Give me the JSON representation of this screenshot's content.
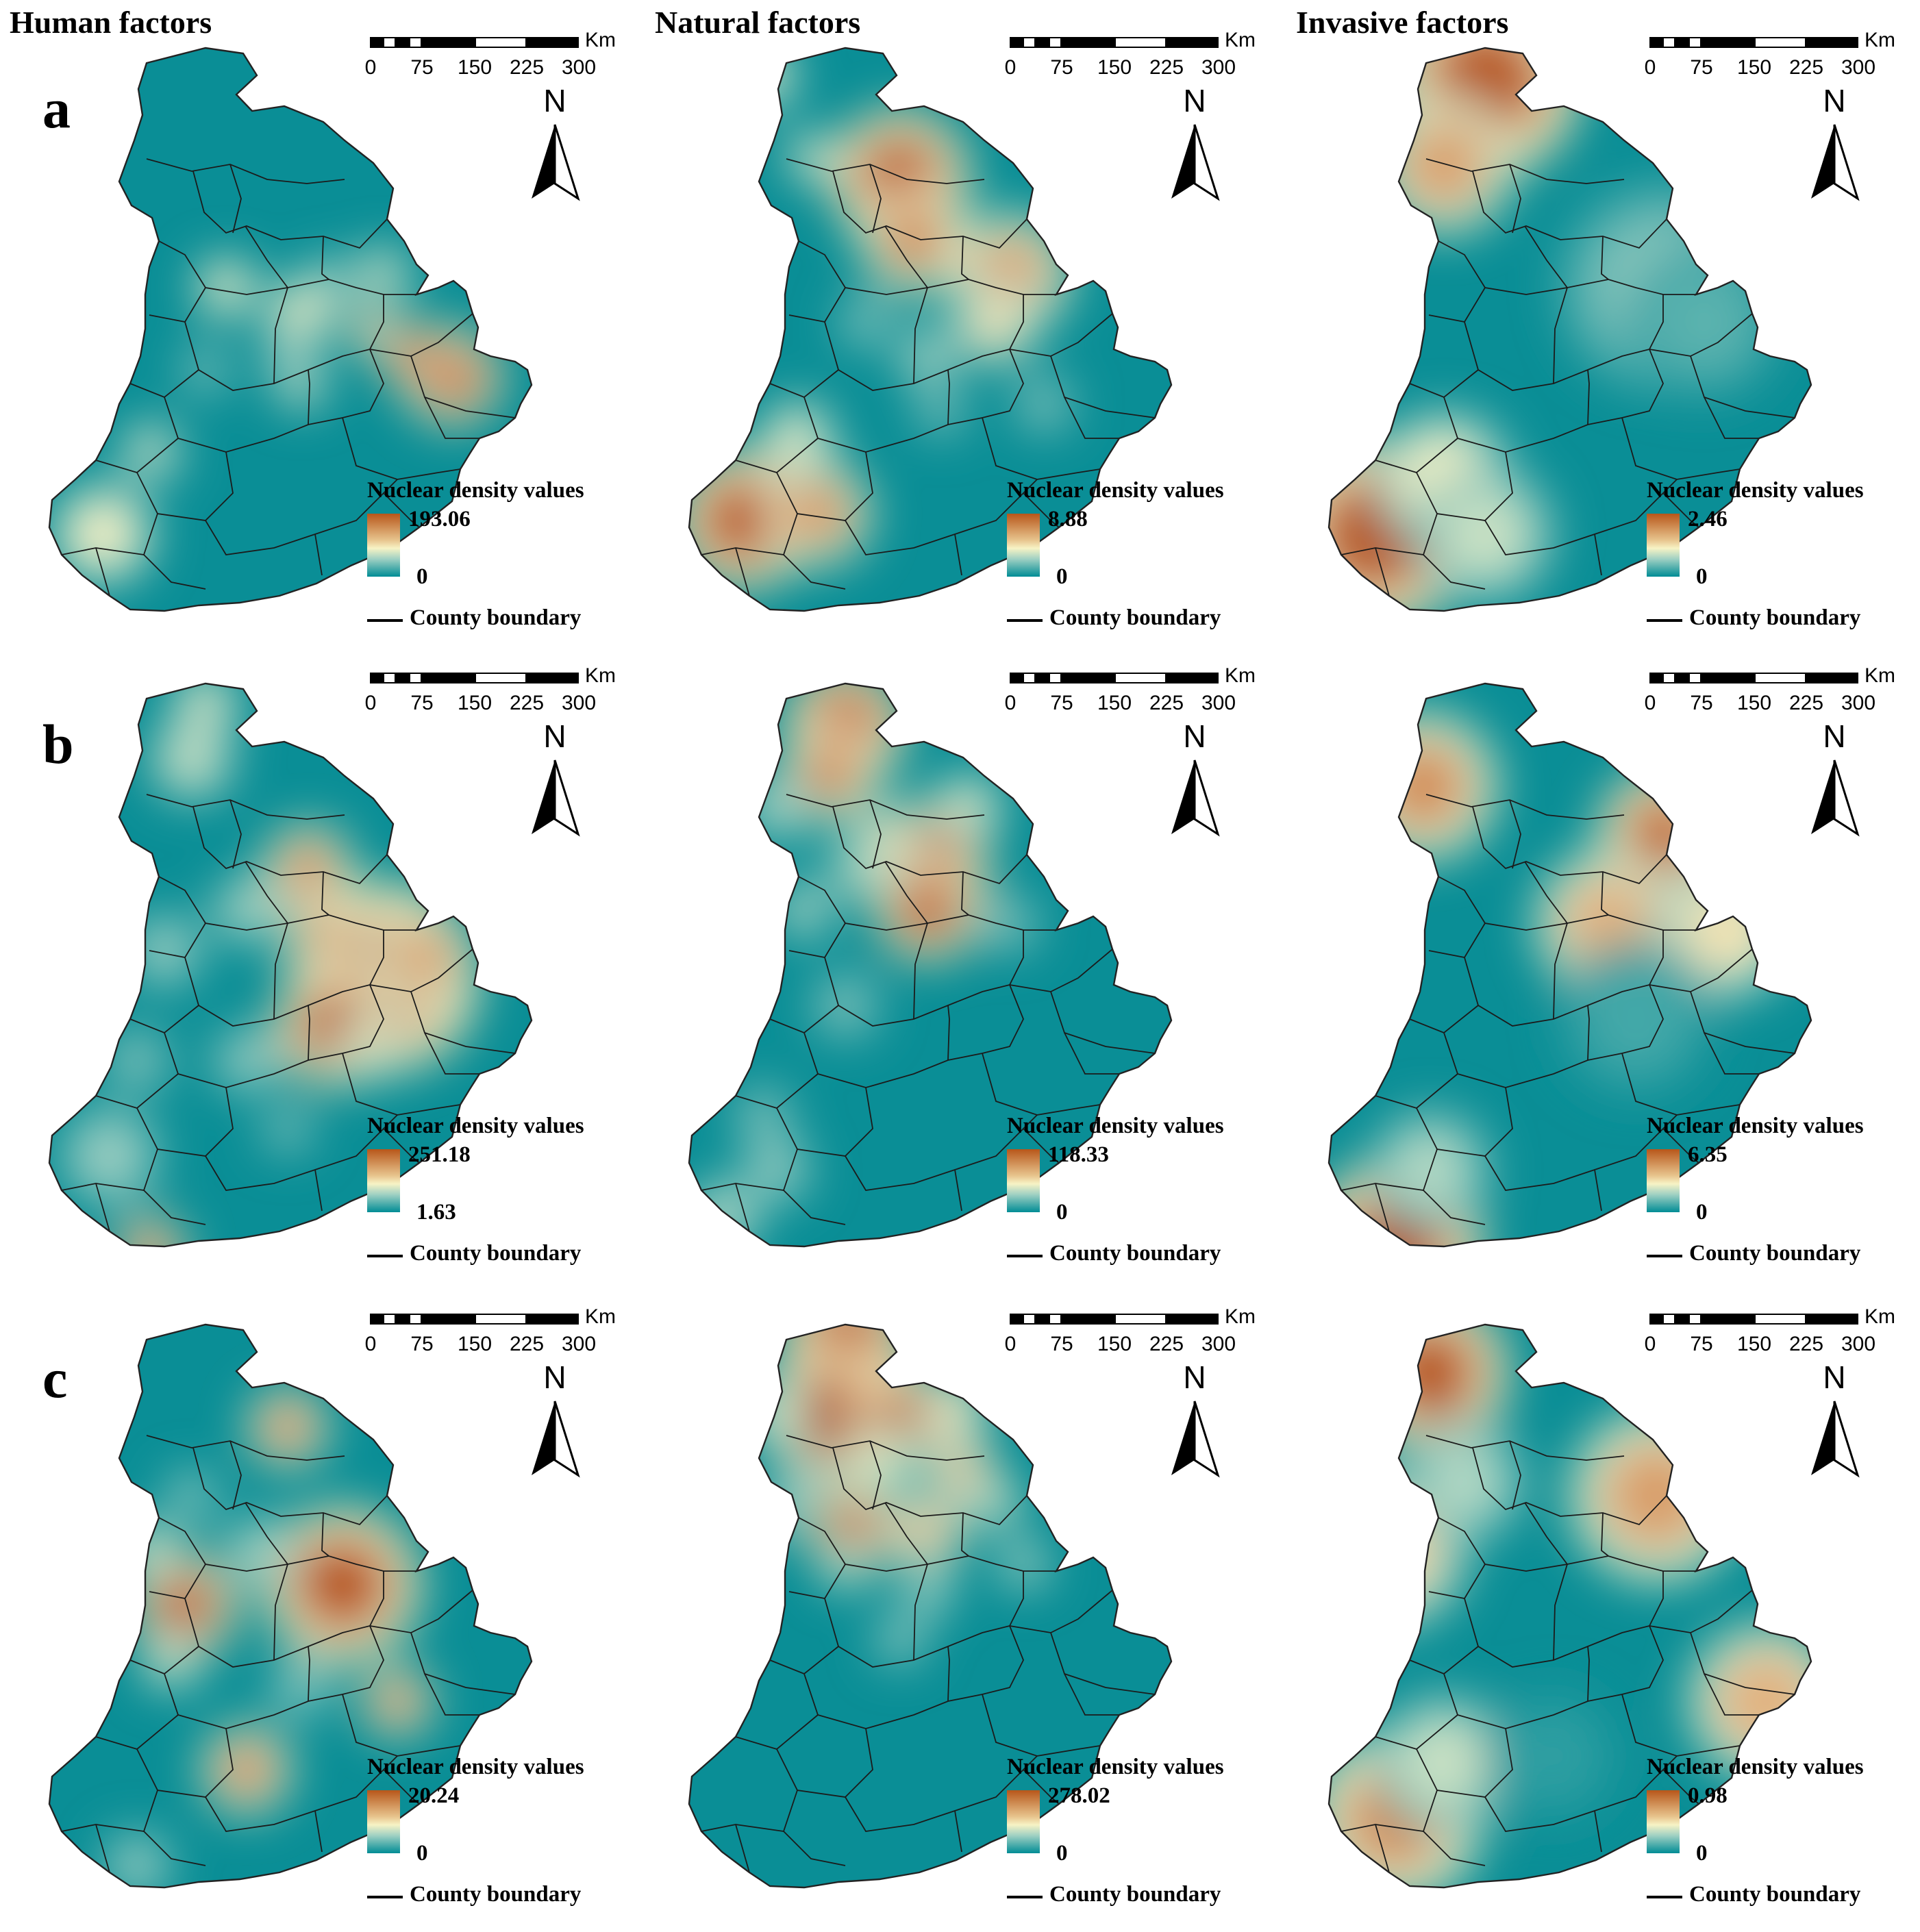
{
  "columns": [
    "Human factors",
    "Natural factors",
    "Invasive factors"
  ],
  "rows": [
    "a",
    "b",
    "c"
  ],
  "scalebar": {
    "unit": "Km",
    "ticks": [
      "0",
      "75",
      "150",
      "225",
      "300"
    ]
  },
  "north_label": "N",
  "legend": {
    "title": "Nuclear density values",
    "boundary_label": "County boundary"
  },
  "panels": [
    {
      "row": "a",
      "factor": "Human factors",
      "max": "193.06",
      "min": "0"
    },
    {
      "row": "a",
      "factor": "Natural factors",
      "max": "8.88",
      "min": "0"
    },
    {
      "row": "a",
      "factor": "Invasive factors",
      "max": "2.46",
      "min": "0"
    },
    {
      "row": "b",
      "factor": "Human factors",
      "max": "251.18",
      "min": "1.63"
    },
    {
      "row": "b",
      "factor": "Natural factors",
      "max": "118.33",
      "min": "0"
    },
    {
      "row": "b",
      "factor": "Invasive factors",
      "max": "6.35",
      "min": "0"
    },
    {
      "row": "c",
      "factor": "Human factors",
      "max": "20.24",
      "min": "0"
    },
    {
      "row": "c",
      "factor": "Natural factors",
      "max": "278.02",
      "min": "0"
    },
    {
      "row": "c",
      "factor": "Invasive factors",
      "max": "0.98",
      "min": "0"
    }
  ],
  "colors": {
    "low": "#008c95",
    "mid": "#f7f3c5",
    "high": "#b7561a"
  }
}
